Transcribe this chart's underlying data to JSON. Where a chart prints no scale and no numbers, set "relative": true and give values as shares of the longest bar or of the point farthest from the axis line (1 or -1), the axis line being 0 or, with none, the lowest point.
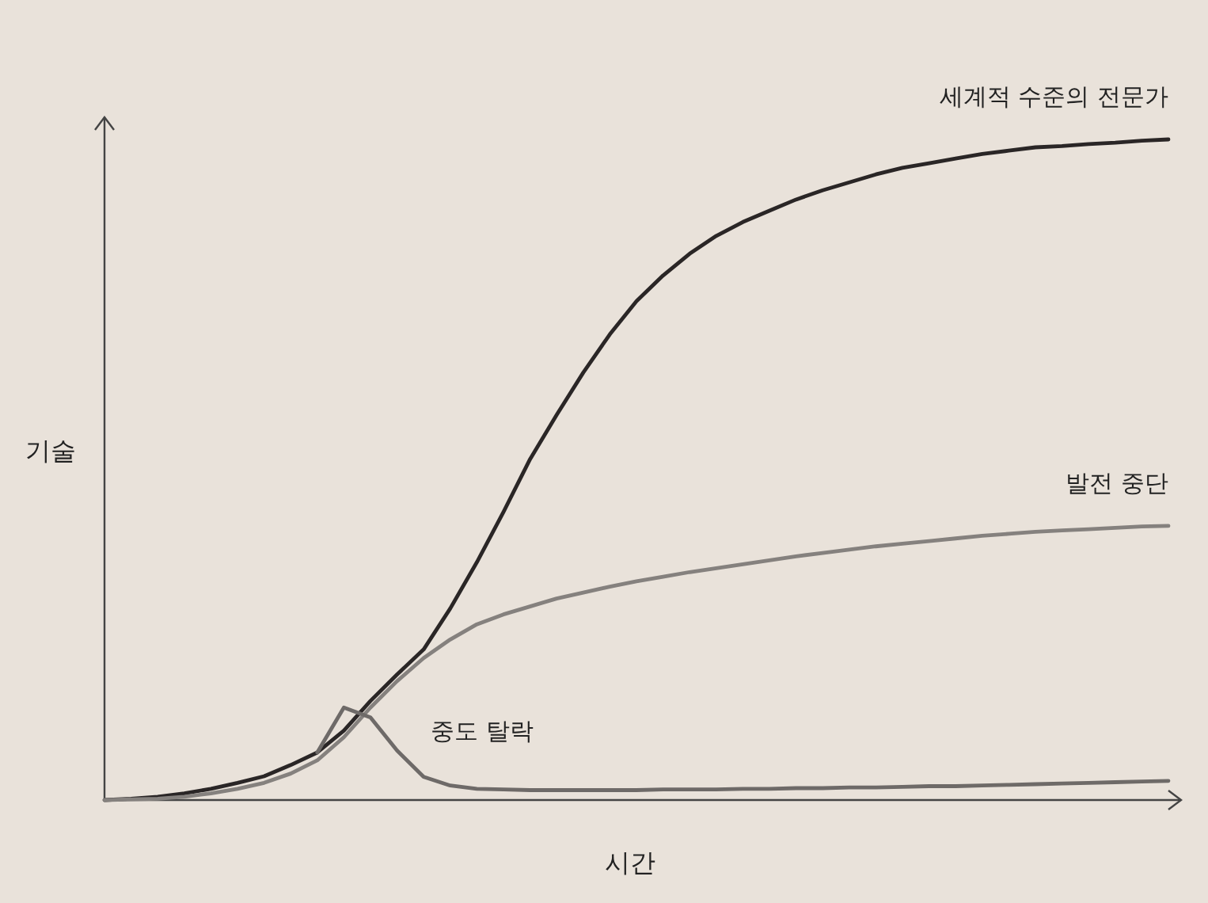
{
  "chart_data": {
    "type": "line",
    "relative": true,
    "xlabel": "시간",
    "ylabel": "기술",
    "categories": [
      null,
      null,
      null,
      null,
      null,
      null,
      null,
      null,
      null,
      null,
      null,
      null,
      null,
      null,
      null,
      null,
      null,
      null,
      null,
      null,
      null,
      null,
      null,
      null,
      null,
      null,
      null,
      null,
      null,
      null,
      null,
      null,
      null,
      null,
      null,
      null,
      null,
      null,
      null,
      null,
      null
    ],
    "series": [
      {
        "name": "세계적 수준의 전문가",
        "color": "#2a2626",
        "values": [
          0,
          0.002,
          0.005,
          0.01,
          0.017,
          0.026,
          0.036,
          0.053,
          0.072,
          0.105,
          0.15,
          0.19,
          0.228,
          0.29,
          0.36,
          0.436,
          0.516,
          0.583,
          0.647,
          0.705,
          0.755,
          0.794,
          0.827,
          0.854,
          0.875,
          0.892,
          0.909,
          0.923,
          0.935,
          0.947,
          0.957,
          0.964,
          0.971,
          0.978,
          0.983,
          0.988,
          0.99,
          0.993,
          0.995,
          0.998,
          1
        ]
      },
      {
        "name": "발전 중단",
        "color": "#85817e",
        "values": [
          0,
          0.001,
          0.002,
          0.005,
          0.01,
          0.017,
          0.026,
          0.04,
          0.06,
          0.095,
          0.14,
          0.18,
          0.215,
          0.243,
          0.266,
          0.281,
          0.293,
          0.305,
          0.314,
          0.323,
          0.331,
          0.338,
          0.345,
          0.351,
          0.357,
          0.363,
          0.369,
          0.374,
          0.379,
          0.384,
          0.388,
          0.392,
          0.396,
          0.4,
          0.403,
          0.406,
          0.408,
          0.41,
          0.412,
          0.414,
          0.415
        ]
      },
      {
        "name": "중도 탈락",
        "color": "#6e6a68",
        "values": [
          null,
          null,
          null,
          null,
          null,
          null,
          null,
          null,
          0.072,
          0.14,
          0.125,
          0.075,
          0.035,
          0.022,
          0.017,
          0.016,
          0.015,
          0.015,
          0.015,
          0.015,
          0.015,
          0.016,
          0.016,
          0.016,
          0.017,
          0.017,
          0.018,
          0.018,
          0.019,
          0.019,
          0.02,
          0.021,
          0.021,
          0.022,
          0.023,
          0.024,
          0.025,
          0.026,
          0.027,
          0.028,
          0.029
        ]
      }
    ]
  }
}
